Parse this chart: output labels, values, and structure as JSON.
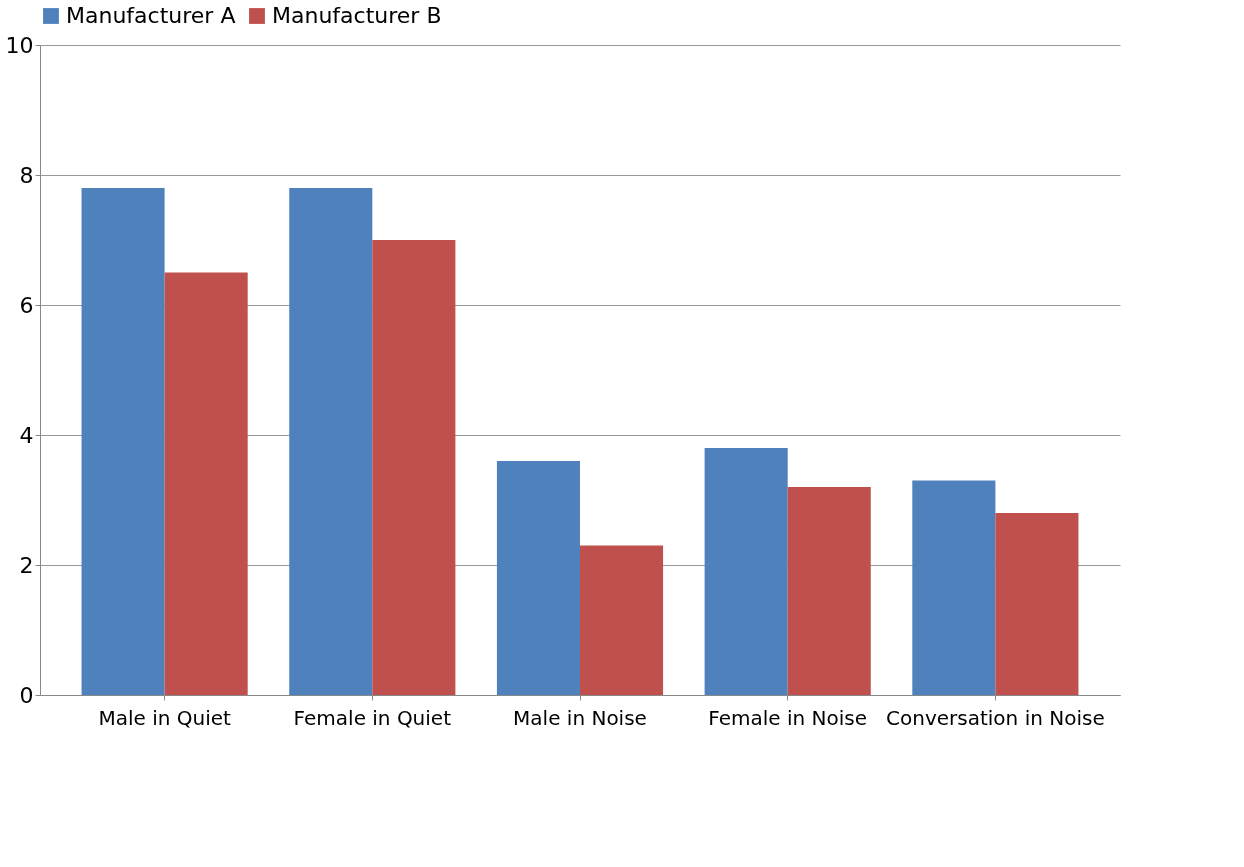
{
  "chart_data": {
    "type": "bar",
    "categories": [
      "Male in Quiet",
      "Female in Quiet",
      "Male in Noise",
      "Female in Noise",
      "Conversation in Noise"
    ],
    "series": [
      {
        "name": "Manufacturer A",
        "color": "#4f81bd",
        "values": [
          7.8,
          7.8,
          3.6,
          3.8,
          3.3
        ]
      },
      {
        "name": "Manufacturer B",
        "color": "#c0504d",
        "values": [
          6.5,
          7.0,
          2.3,
          3.2,
          2.8
        ]
      }
    ],
    "ylim": [
      0,
      10
    ],
    "yticks": [
      0,
      2,
      4,
      6,
      8,
      10
    ],
    "grid": "y",
    "legend": "top"
  }
}
